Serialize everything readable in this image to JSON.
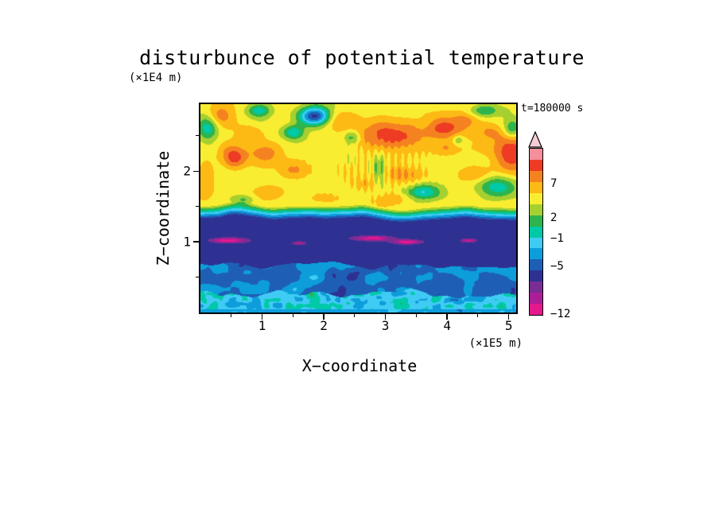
{
  "chart_data": {
    "type": "filled_contour",
    "title": "disturbunce of potential temperature",
    "annotation": "t=180000 s",
    "xlabel": "X−coordinate",
    "x_unit": "(×1E5 m)",
    "ylabel": "Z−coordinate",
    "y_unit": "(×1E4 m)",
    "x_range": [
      0,
      5.12
    ],
    "z_range": [
      0,
      2.95
    ],
    "x_ticks": [
      1,
      2,
      3,
      4,
      5
    ],
    "y_ticks": [
      1,
      2
    ],
    "value_range": [
      -12,
      14
    ],
    "colorbar_ticks": [
      7,
      2,
      -1,
      -5,
      -12
    ],
    "palette": [
      "#e5188d",
      "#ac1e97",
      "#7a2d93",
      "#2e3192",
      "#1e5fb5",
      "#0d9ddb",
      "#40cbf4",
      "#00c9a7",
      "#2eb44d",
      "#a6d02f",
      "#f9ed31",
      "#fdb914",
      "#f58220",
      "#ee3b23",
      "#f58f9b",
      "#f8ccd6"
    ],
    "field_model": {
      "seed": 7,
      "bands": {
        "navy_top": 1.33,
        "grad_height": 0.19,
        "navy_bot": 0.68,
        "speckle_top": 0.25,
        "bottom_strip": 0.04,
        "upper_base": 5.1,
        "upper_noise": 1.1,
        "grad_noise": 0.6,
        "navy_base": -6.3,
        "navy_noise": 0.4,
        "blue_base": -4.0,
        "blue_noise": 2.6,
        "speckle_base": -1.3,
        "speckle_noise": 3.1,
        "bottom_base": -3.0,
        "bottom_noise": 1.5,
        "wobble": 0.08
      },
      "stripes": {
        "x": 2.8,
        "z": 2.02,
        "sx": 0.75,
        "sz": 0.33,
        "freq": 57,
        "amp": 1.25
      },
      "blobs": [
        [
          3.05,
          2.52,
          0.5,
          0.22,
          5.2
        ],
        [
          3.95,
          2.6,
          0.33,
          0.16,
          4.0
        ],
        [
          2.25,
          2.72,
          0.28,
          0.13,
          2.6
        ],
        [
          0.55,
          2.18,
          0.2,
          0.16,
          5.0
        ],
        [
          1.05,
          2.22,
          0.28,
          0.18,
          3.2
        ],
        [
          1.52,
          2.02,
          0.26,
          0.13,
          2.8
        ],
        [
          0.3,
          2.78,
          0.22,
          0.16,
          3.4
        ],
        [
          5.05,
          2.25,
          0.28,
          0.28,
          5.0
        ],
        [
          4.45,
          1.95,
          0.28,
          0.13,
          2.6
        ],
        [
          3.35,
          1.95,
          0.3,
          0.11,
          2.2
        ],
        [
          2.65,
          1.82,
          0.22,
          0.1,
          2.0
        ],
        [
          1.15,
          1.7,
          0.28,
          0.1,
          2.0
        ],
        [
          2.0,
          1.62,
          0.28,
          0.09,
          1.8
        ],
        [
          3.1,
          1.6,
          0.33,
          0.09,
          1.8
        ],
        [
          4.0,
          2.32,
          0.22,
          0.11,
          2.2
        ],
        [
          0.08,
          1.9,
          0.15,
          0.25,
          2.6
        ],
        [
          4.7,
          2.55,
          0.2,
          0.12,
          2.4
        ],
        [
          0.85,
          2.55,
          0.2,
          0.12,
          2.2
        ],
        [
          4.3,
          2.72,
          0.18,
          0.1,
          2.0
        ],
        [
          1.85,
          2.78,
          0.26,
          0.13,
          -11.5
        ],
        [
          1.5,
          2.55,
          0.18,
          0.11,
          -6.0
        ],
        [
          0.13,
          2.62,
          0.16,
          0.18,
          -5.0
        ],
        [
          0.95,
          2.86,
          0.18,
          0.09,
          -4.5
        ],
        [
          2.46,
          2.48,
          0.13,
          0.09,
          -4.0
        ],
        [
          3.62,
          1.7,
          0.28,
          0.11,
          -6.0
        ],
        [
          4.85,
          1.78,
          0.32,
          0.16,
          -5.5
        ],
        [
          4.6,
          2.86,
          0.22,
          0.09,
          -4.5
        ],
        [
          5.05,
          2.6,
          0.13,
          0.13,
          -4.0
        ],
        [
          2.9,
          2.02,
          0.1,
          0.22,
          -3.5
        ],
        [
          4.18,
          2.44,
          0.09,
          0.07,
          -3.0
        ],
        [
          0.7,
          1.6,
          0.16,
          0.07,
          -3.0
        ],
        [
          0.45,
          1.02,
          0.26,
          0.035,
          -5.8
        ],
        [
          2.8,
          1.05,
          0.28,
          0.03,
          -5.2
        ],
        [
          3.35,
          1.0,
          0.22,
          0.03,
          -5.6
        ],
        [
          4.35,
          1.02,
          0.11,
          0.025,
          -4.4
        ],
        [
          1.6,
          0.98,
          0.09,
          0.022,
          -3.6
        ]
      ]
    }
  }
}
